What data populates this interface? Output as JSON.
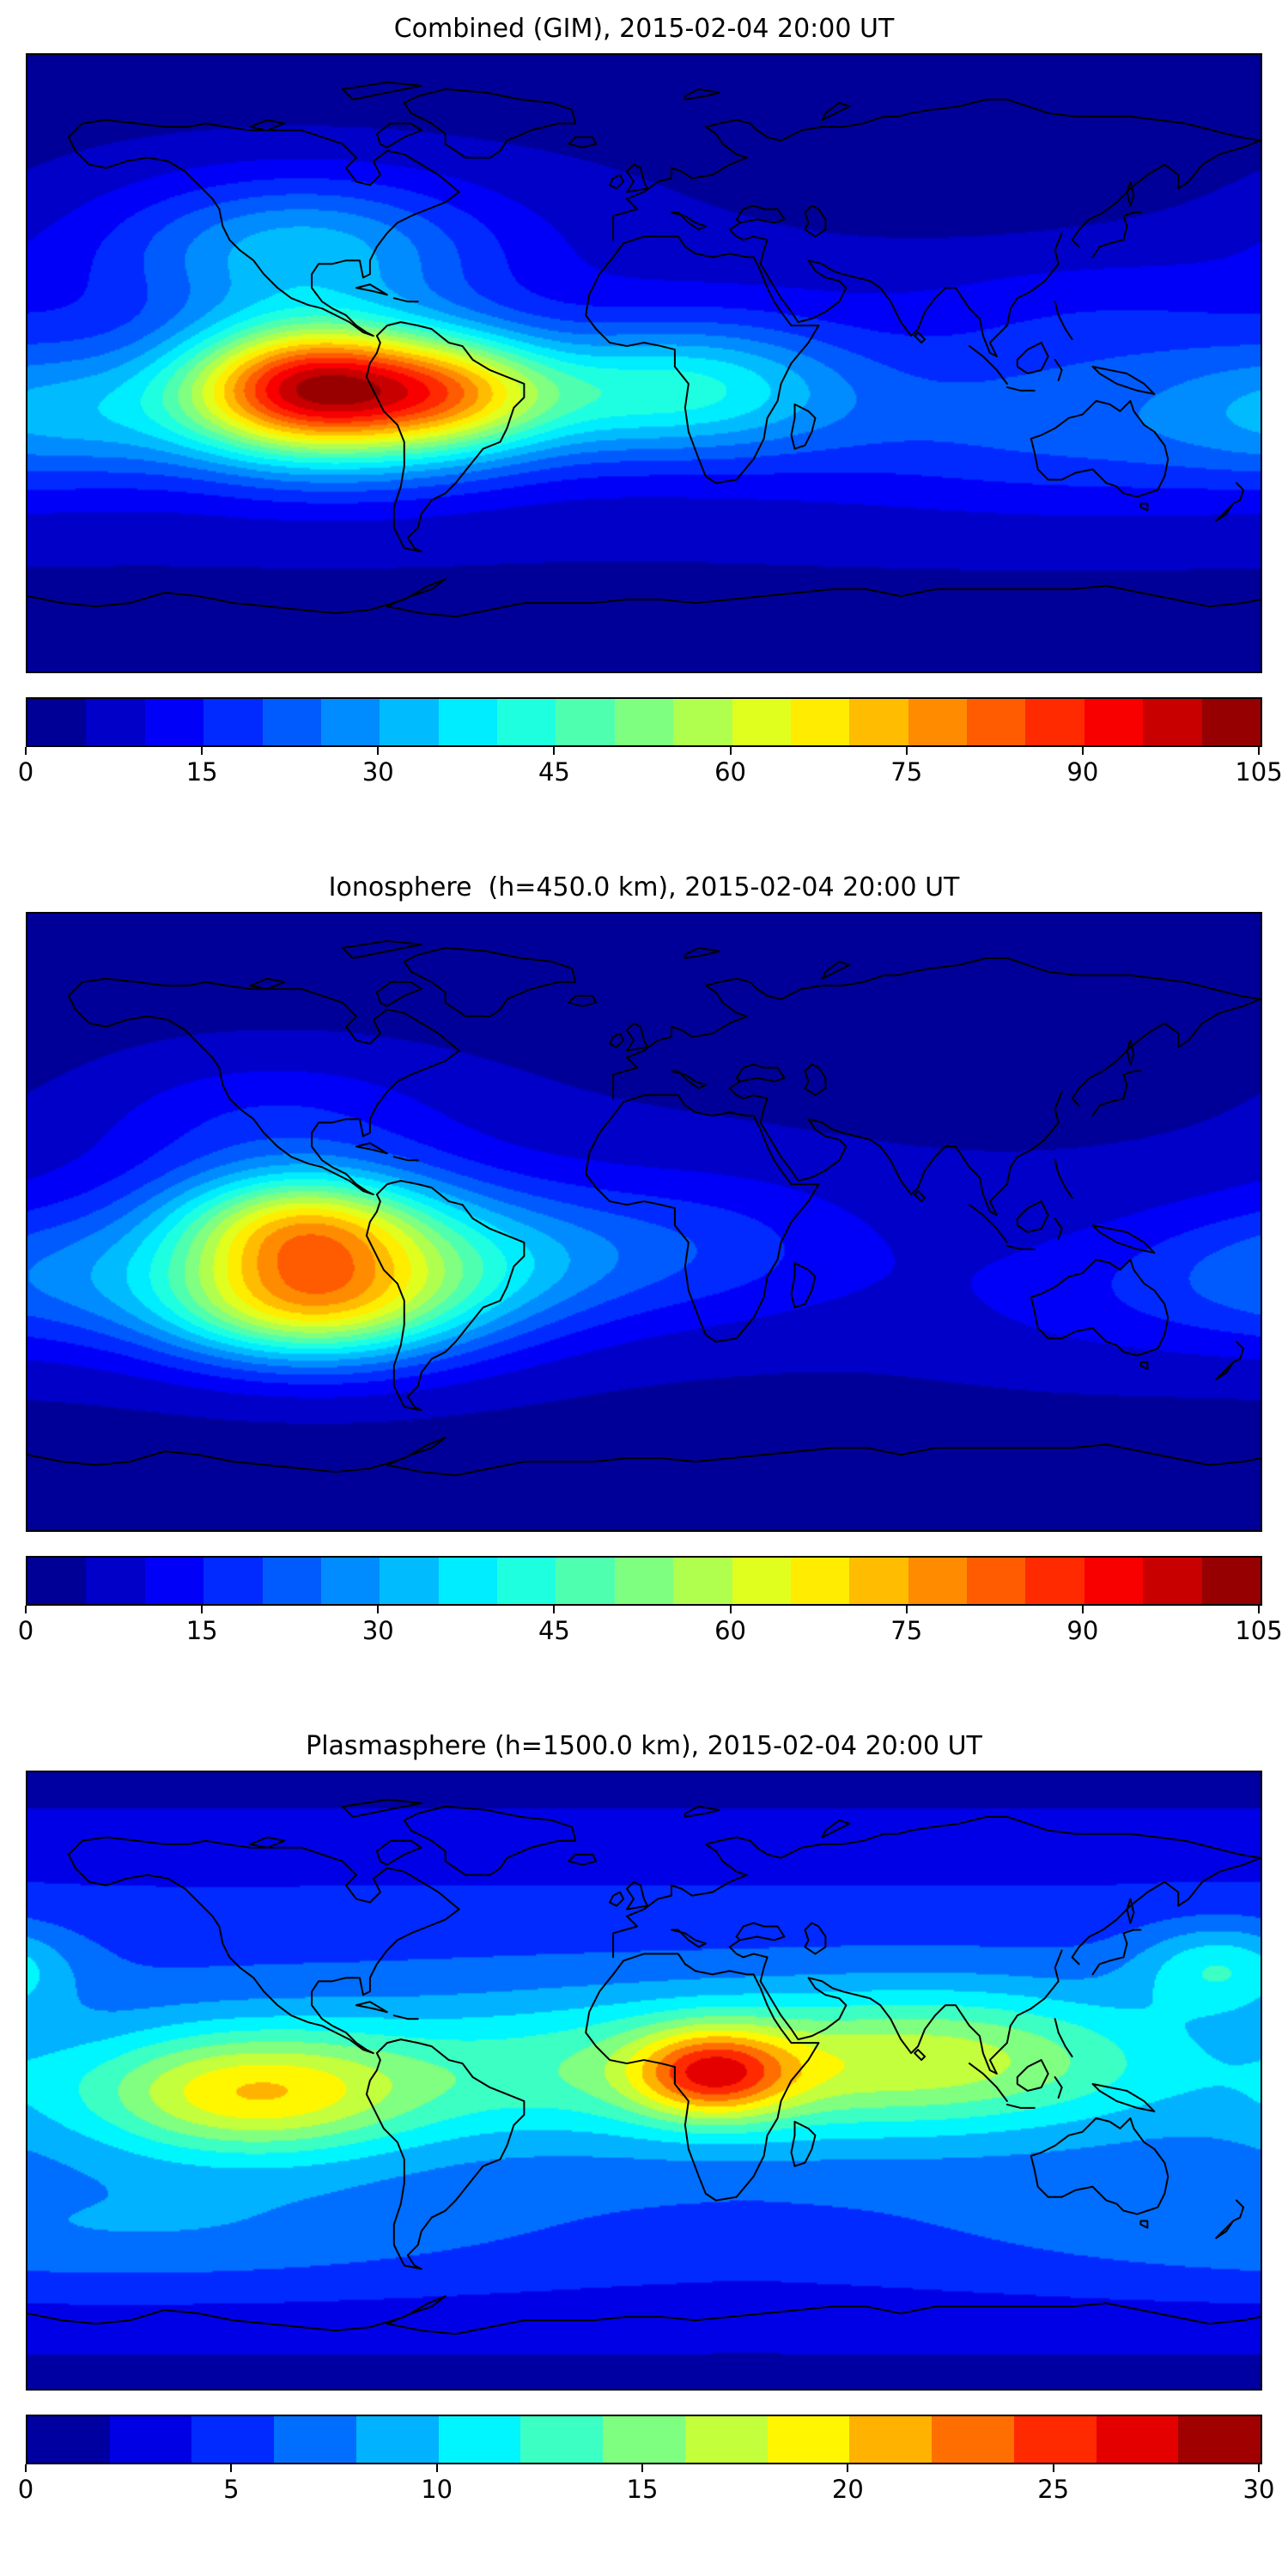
{
  "figure": {
    "background": "#ffffff",
    "panels": [
      {
        "title": "Combined (GIM), 2015-02-04 20:00 UT"
      },
      {
        "title": "Ionosphere  (h=450.0 km), 2015-02-04 20:00 UT"
      },
      {
        "title": "Plasmasphere (h=1500.0 km), 2015-02-04 20:00 UT"
      }
    ]
  },
  "chart_data": [
    {
      "type": "heatmap",
      "title": "Combined (GIM), 2015-02-04 20:00 UT",
      "projection": "equirectangular",
      "basemap": "world-coastlines",
      "x_range": [
        -180,
        180
      ],
      "y_range": [
        -90,
        90
      ],
      "colormap": "jet",
      "colorbar": {
        "vmin": 0,
        "vmax": 105,
        "level_step": 5,
        "ticks": [
          0,
          15,
          30,
          45,
          60,
          75,
          90,
          105
        ],
        "tick_labels": [
          "0",
          "15",
          "30",
          "45",
          "60",
          "75",
          "90",
          "105"
        ]
      },
      "field": {
        "base": 8,
        "lat_falloff": 7,
        "falloff_power": 1.8,
        "blobs": [
          {
            "lon": -97,
            "lat": -6,
            "amp": 68,
            "sx": 26,
            "sy": 13
          },
          {
            "lon": -90,
            "lat": -16,
            "amp": 26,
            "sx": 40,
            "sy": 15
          },
          {
            "lon": -55,
            "lat": -8,
            "amp": 30,
            "sx": 20,
            "sy": 12
          },
          {
            "lon": -15,
            "lat": -9,
            "amp": 20,
            "sx": 34,
            "sy": 13
          },
          {
            "lon": 22,
            "lat": -6,
            "amp": 18,
            "sx": 30,
            "sy": 14
          },
          {
            "lon": -100,
            "lat": 33,
            "amp": 26,
            "sx": 38,
            "sy": 15
          },
          {
            "lon": -170,
            "lat": -14,
            "amp": 16,
            "sx": 28,
            "sy": 14
          },
          {
            "lon": 75,
            "lat": -18,
            "amp": 8,
            "sx": 45,
            "sy": 16
          },
          {
            "lon": 95,
            "lat": 55,
            "amp": -5,
            "sx": 45,
            "sy": 15
          },
          {
            "lon": 140,
            "lat": -22,
            "amp": 9,
            "sx": 40,
            "sy": 15
          },
          {
            "lon": 135,
            "lat": 8,
            "amp": 7,
            "sx": 40,
            "sy": 16
          }
        ]
      }
    },
    {
      "type": "heatmap",
      "title": "Ionosphere  (h=450.0 km), 2015-02-04 20:00 UT",
      "projection": "equirectangular",
      "basemap": "world-coastlines",
      "x_range": [
        -180,
        180
      ],
      "y_range": [
        -90,
        90
      ],
      "colormap": "jet",
      "colorbar": {
        "vmin": 0,
        "vmax": 105,
        "level_step": 5,
        "ticks": [
          0,
          15,
          30,
          45,
          60,
          75,
          90,
          105
        ],
        "tick_labels": [
          "0",
          "15",
          "30",
          "45",
          "60",
          "75",
          "90",
          "105"
        ]
      },
      "field": {
        "base": 6,
        "lat_falloff": 6,
        "falloff_power": 1.8,
        "blobs": [
          {
            "lon": -100,
            "lat": -1,
            "amp": 40,
            "sx": 26,
            "sy": 11
          },
          {
            "lon": -98,
            "lat": -24,
            "amp": 44,
            "sx": 30,
            "sy": 12
          },
          {
            "lon": -92,
            "lat": -12,
            "amp": 24,
            "sx": 45,
            "sy": 19
          },
          {
            "lon": -45,
            "lat": -12,
            "amp": 13,
            "sx": 30,
            "sy": 14
          },
          {
            "lon": 15,
            "lat": -8,
            "amp": 11,
            "sx": 35,
            "sy": 15
          },
          {
            "lon": -108,
            "lat": 30,
            "amp": 9,
            "sx": 35,
            "sy": 14
          },
          {
            "lon": -175,
            "lat": -15,
            "amp": 12,
            "sx": 30,
            "sy": 14
          },
          {
            "lon": 100,
            "lat": 50,
            "amp": -4,
            "sx": 50,
            "sy": 16
          },
          {
            "lon": 135,
            "lat": -22,
            "amp": 6,
            "sx": 40,
            "sy": 15
          }
        ]
      }
    },
    {
      "type": "heatmap",
      "title": "Plasmasphere (h=1500.0 km), 2015-02-04 20:00 UT",
      "projection": "equirectangular",
      "basemap": "world-coastlines",
      "x_range": [
        -180,
        180
      ],
      "y_range": [
        -90,
        90
      ],
      "colormap": "jet",
      "colorbar": {
        "vmin": 0,
        "vmax": 30,
        "level_step": 2,
        "ticks": [
          0,
          5,
          10,
          15,
          20,
          25,
          30
        ],
        "tick_labels": [
          "0",
          "5",
          "10",
          "15",
          "20",
          "25",
          "30"
        ]
      },
      "field": {
        "base": 7,
        "lat_falloff": 6,
        "falloff_power": 1.5,
        "blobs": [
          {
            "lon": 20,
            "lat": 2,
            "amp": 12,
            "sx": 16,
            "sy": 9
          },
          {
            "lon": 25,
            "lat": 4,
            "amp": 8,
            "sx": 75,
            "sy": 15
          },
          {
            "lon": -115,
            "lat": -4,
            "amp": 12,
            "sx": 35,
            "sy": 13
          },
          {
            "lon": 95,
            "lat": 8,
            "amp": 5,
            "sx": 40,
            "sy": 14
          },
          {
            "lon": 168,
            "lat": 33,
            "amp": 6,
            "sx": 17,
            "sy": 9
          },
          {
            "lon": -150,
            "lat": -45,
            "amp": 3,
            "sx": 80,
            "sy": 12
          }
        ]
      }
    }
  ]
}
